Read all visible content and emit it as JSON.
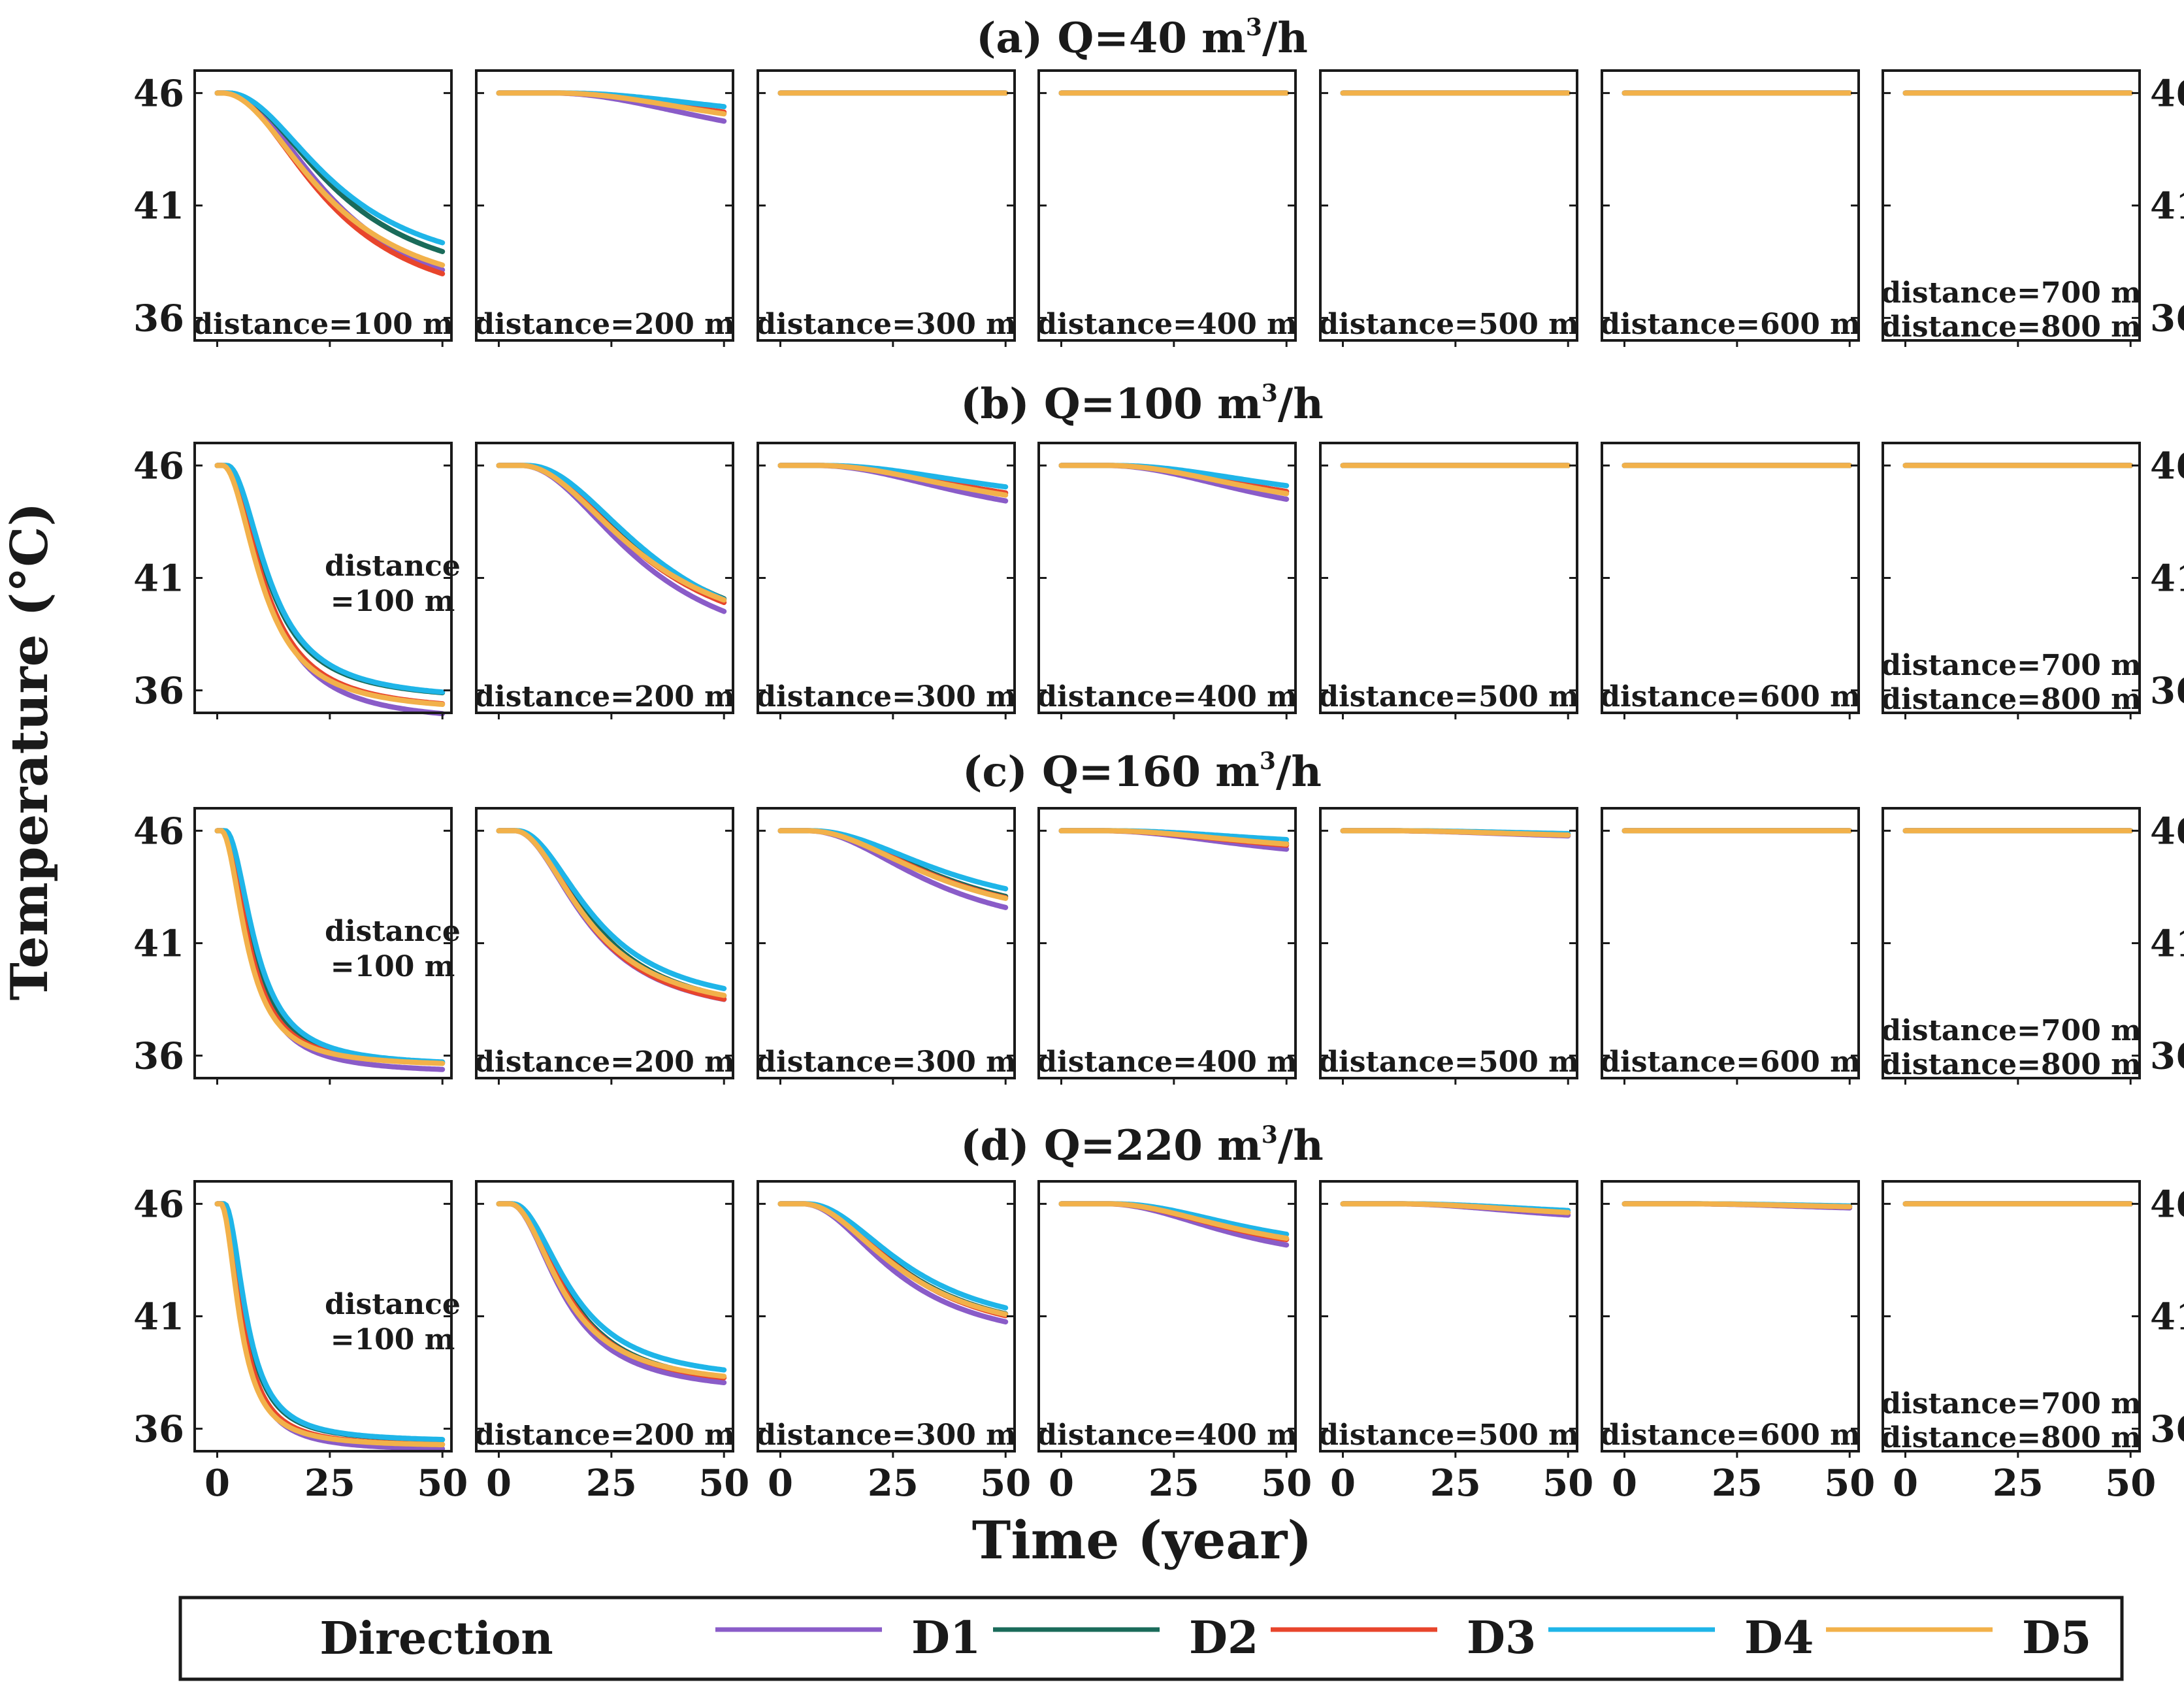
{
  "figure": {
    "ylabel": "Temperature (°C)",
    "xlabel": "Time (year)",
    "rows": [
      {
        "label_prefix": "(a) Q=40 m",
        "label_sup": "3",
        "label_suffix": "/h"
      },
      {
        "label_prefix": "(b) Q=100 m",
        "label_sup": "3",
        "label_suffix": "/h"
      },
      {
        "label_prefix": "(c) Q=160 m",
        "label_sup": "3",
        "label_suffix": "/h"
      },
      {
        "label_prefix": "(d) Q=220 m",
        "label_sup": "3",
        "label_suffix": "/h"
      }
    ],
    "panel_labels": [
      "distance=100 m",
      "distance=200 m",
      "distance=300 m",
      "distance=400 m",
      "distance=500 m",
      "distance=600 m"
    ],
    "panel_label_split": [
      "distance",
      "=100 m"
    ],
    "last_panel_labels": [
      "distance=700 m",
      "distance=800 m"
    ],
    "legend": {
      "title": "Direction",
      "entries": [
        "D1",
        "D2",
        "D3",
        "D4",
        "D5"
      ]
    }
  },
  "chart_data": {
    "type": "line",
    "layout": "4 rows x 7 columns of small multiples",
    "xlabel": "Time (year)",
    "ylabel": "Temperature (°C)",
    "xlim": [
      -5,
      52
    ],
    "ylim": [
      35,
      47
    ],
    "xticks": [
      0,
      25,
      50
    ],
    "yticks": [
      36,
      41,
      46
    ],
    "legend_placement": "bottom",
    "series_names": [
      "D1",
      "D2",
      "D3",
      "D4",
      "D5"
    ],
    "colors": [
      "#8a5cc8",
      "#1a6b5a",
      "#e8452c",
      "#1fb5e8",
      "#f2b14a"
    ],
    "note": "Each curve: T(t) = 46 - drop * s^2/(1+s^2) with s=(t-onset)/tau (t in years); params per series in [drop, tau, onset]",
    "panels": [
      [
        {
          "distance": "100 m",
          "params": [
            [
              10,
              25,
              2
            ],
            [
              9,
              25,
              2.5
            ],
            [
              10,
              24,
              1.5
            ],
            [
              8.5,
              25,
              2.5
            ],
            [
              9.5,
              24,
              1.2
            ]
          ]
        },
        {
          "distance": "200 m",
          "params": [
            [
              3,
              45,
              12
            ],
            [
              2.3,
              45,
              14
            ],
            [
              2.1,
              45,
              13
            ],
            [
              1.6,
              45,
              15
            ],
            [
              2.3,
              45,
              13
            ]
          ]
        },
        {
          "distance": "300 m",
          "params": [
            [
              0,
              10,
              0
            ],
            [
              0,
              10,
              0
            ],
            [
              0,
              10,
              0
            ],
            [
              0,
              10,
              0
            ],
            [
              0,
              10,
              0
            ]
          ]
        },
        {
          "distance": "400 m",
          "params": [
            [
              0,
              10,
              0
            ],
            [
              0,
              10,
              0
            ],
            [
              0,
              10,
              0
            ],
            [
              0,
              10,
              0
            ],
            [
              0,
              10,
              0
            ]
          ]
        },
        {
          "distance": "500 m",
          "params": [
            [
              0,
              10,
              0
            ],
            [
              0,
              10,
              0
            ],
            [
              0,
              10,
              0
            ],
            [
              0,
              10,
              0
            ],
            [
              0,
              10,
              0
            ]
          ]
        },
        {
          "distance": "600 m",
          "params": [
            [
              0,
              10,
              0
            ],
            [
              0,
              10,
              0
            ],
            [
              0,
              10,
              0
            ],
            [
              0,
              10,
              0
            ],
            [
              0,
              10,
              0
            ]
          ]
        },
        {
          "distance": "700 m / 800 m",
          "params": [
            [
              0,
              10,
              0
            ],
            [
              0,
              10,
              0
            ],
            [
              0,
              10,
              0
            ],
            [
              0,
              10,
              0
            ],
            [
              0,
              10,
              0
            ]
          ]
        }
      ],
      [
        {
          "distance": "100 m",
          "params": [
            [
              11.5,
              10,
              1.3
            ],
            [
              10.5,
              9.5,
              2.2
            ],
            [
              11,
              9.5,
              1.4
            ],
            [
              10.5,
              9.8,
              2.2
            ],
            [
              11,
              9.2,
              1.2
            ]
          ]
        },
        {
          "distance": "200 m",
          "params": [
            [
              9,
              28,
              5
            ],
            [
              8.5,
              29,
              6
            ],
            [
              8.5,
              28,
              5.5
            ],
            [
              8.8,
              30,
              6.5
            ],
            [
              8.3,
              28,
              5
            ]
          ]
        },
        {
          "distance": "300 m",
          "params": [
            [
              3,
              40,
              8
            ],
            [
              2.5,
              42,
              9
            ],
            [
              2.5,
              42,
              9
            ],
            [
              2.1,
              44,
              10
            ],
            [
              2.6,
              41,
              8.5
            ]
          ]
        },
        {
          "distance": "400 m",
          "params": [
            [
              3,
              40,
              10
            ],
            [
              2.5,
              42,
              11
            ],
            [
              2.5,
              42,
              11
            ],
            [
              2.1,
              44,
              12
            ],
            [
              2.6,
              41,
              10.5
            ]
          ]
        },
        {
          "distance": "500 m",
          "params": [
            [
              0,
              10,
              0
            ],
            [
              0,
              10,
              0
            ],
            [
              0,
              10,
              0
            ],
            [
              0,
              10,
              0
            ],
            [
              0,
              10,
              0
            ]
          ]
        },
        {
          "distance": "600 m",
          "params": [
            [
              0,
              10,
              0
            ],
            [
              0,
              10,
              0
            ],
            [
              0,
              10,
              0
            ],
            [
              0,
              10,
              0
            ],
            [
              0,
              10,
              0
            ]
          ]
        },
        {
          "distance": "700 m / 800 m",
          "params": [
            [
              0,
              10,
              0
            ],
            [
              0,
              10,
              0
            ],
            [
              0,
              10,
              0
            ],
            [
              0,
              10,
              0
            ],
            [
              0,
              10,
              0
            ]
          ]
        }
      ],
      [
        {
          "distance": "100 m",
          "params": [
            [
              10.8,
              6.5,
              1
            ],
            [
              10.5,
              6.5,
              1.8
            ],
            [
              10.5,
              6.2,
              1.2
            ],
            [
              10.5,
              7,
              1.8
            ],
            [
              10.5,
              6,
              0.9
            ]
          ]
        },
        {
          "distance": "200 m",
          "params": [
            [
              8.5,
              17,
              3.5
            ],
            [
              8.4,
              17.5,
              4
            ],
            [
              8.5,
              17,
              3.8
            ],
            [
              8.1,
              18,
              4.2
            ],
            [
              8.3,
              17,
              3.5
            ]
          ]
        },
        {
          "distance": "300 m",
          "params": [
            [
              5,
              30,
              6
            ],
            [
              4.5,
              32,
              6.5
            ],
            [
              4.5,
              31,
              6.5
            ],
            [
              4.1,
              33,
              7
            ],
            [
              4.5,
              31,
              6
            ]
          ]
        },
        {
          "distance": "400 m",
          "params": [
            [
              1.6,
              40,
              9
            ],
            [
              1.2,
              42,
              10
            ],
            [
              1.3,
              41,
              9.5
            ],
            [
              0.9,
              44,
              11
            ],
            [
              1.2,
              41,
              9.5
            ]
          ]
        },
        {
          "distance": "500 m",
          "params": [
            [
              0.45,
              40,
              10
            ],
            [
              0.35,
              42,
              11
            ],
            [
              0.4,
              41,
              10.5
            ],
            [
              0.3,
              44,
              12
            ],
            [
              0.4,
              41,
              10.5
            ]
          ]
        },
        {
          "distance": "600 m",
          "params": [
            [
              0,
              10,
              0
            ],
            [
              0,
              10,
              0
            ],
            [
              0,
              10,
              0
            ],
            [
              0,
              10,
              0
            ],
            [
              0,
              10,
              0
            ]
          ]
        },
        {
          "distance": "700 m / 800 m",
          "params": [
            [
              0,
              10,
              0
            ],
            [
              0,
              10,
              0
            ],
            [
              0,
              10,
              0
            ],
            [
              0,
              10,
              0
            ],
            [
              0,
              10,
              0
            ]
          ]
        }
      ],
      [
        {
          "distance": "100 m",
          "params": [
            [
              11,
              4.8,
              0.9
            ],
            [
              10.6,
              5,
              1.6
            ],
            [
              10.8,
              4.7,
              1.1
            ],
            [
              10.6,
              5.2,
              1.6
            ],
            [
              10.8,
              4.5,
              0.8
            ]
          ]
        },
        {
          "distance": "200 m",
          "params": [
            [
              8.5,
              12.5,
              2.5
            ],
            [
              8.3,
              13,
              3
            ],
            [
              8.3,
              12.8,
              2.8
            ],
            [
              8.0,
              13.5,
              3.2
            ],
            [
              8.2,
              12.5,
              2.5
            ]
          ]
        },
        {
          "distance": "300 m",
          "params": [
            [
              6.5,
              22,
              5
            ],
            [
              6.2,
              23,
              5.5
            ],
            [
              6.3,
              23,
              5.5
            ],
            [
              6.0,
              24,
              6
            ],
            [
              6.2,
              23,
              5
            ]
          ]
        },
        {
          "distance": "400 m",
          "params": [
            [
              3,
              32,
              10
            ],
            [
              2.7,
              33,
              11
            ],
            [
              2.7,
              33,
              10.5
            ],
            [
              2.5,
              35,
              12
            ],
            [
              2.6,
              33,
              10.5
            ]
          ]
        },
        {
          "distance": "500 m",
          "params": [
            [
              1,
              38,
              12
            ],
            [
              0.8,
              40,
              13
            ],
            [
              0.8,
              39,
              12.5
            ],
            [
              0.7,
              42,
              14
            ],
            [
              0.8,
              39,
              12.5
            ]
          ]
        },
        {
          "distance": "600 m",
          "params": [
            [
              0.4,
              40,
              14
            ],
            [
              0.3,
              42,
              15
            ],
            [
              0.3,
              41,
              14.5
            ],
            [
              0.25,
              44,
              16
            ],
            [
              0.3,
              41,
              14.5
            ]
          ]
        },
        {
          "distance": "700 m / 800 m",
          "params": [
            [
              0,
              10,
              0
            ],
            [
              0,
              10,
              0
            ],
            [
              0,
              10,
              0
            ],
            [
              0,
              10,
              0
            ],
            [
              0,
              10,
              0
            ]
          ]
        }
      ]
    ]
  }
}
